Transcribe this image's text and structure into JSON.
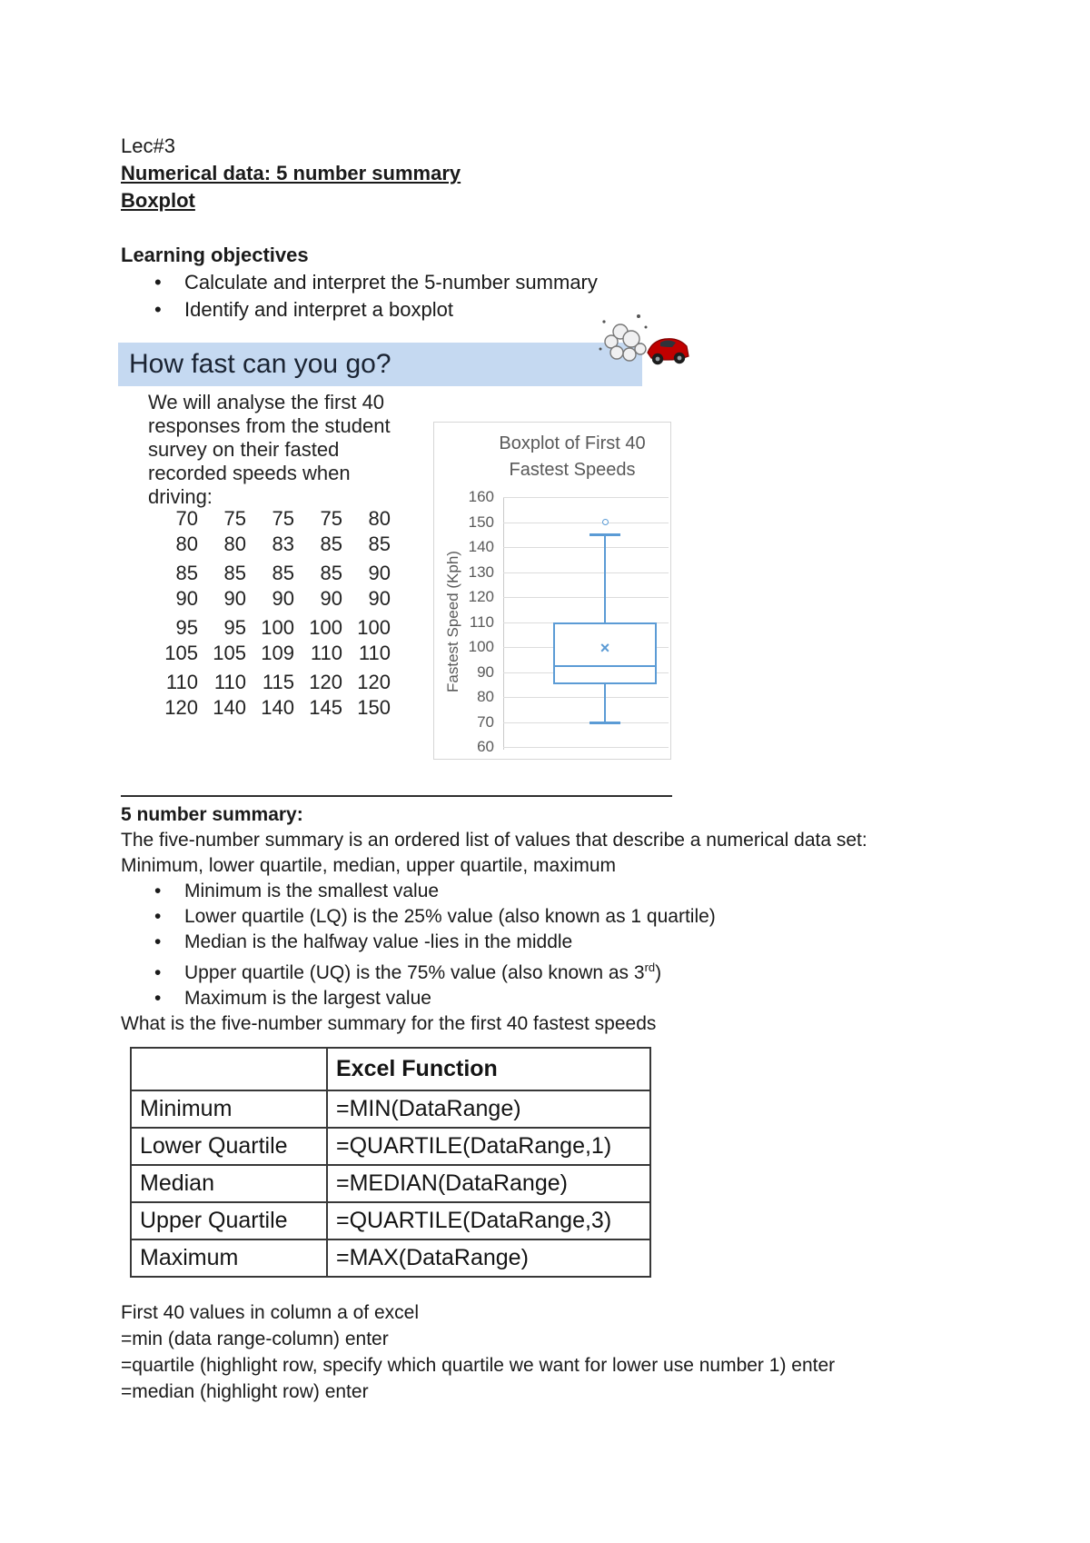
{
  "head": {
    "lec": "Lec#3",
    "title1": "Numerical data: 5 number summary",
    "title2": "Boxplot"
  },
  "objectives": {
    "heading": "Learning objectives",
    "bullet_char": "•",
    "items": [
      "Calculate and interpret the 5-number summary",
      "Identify and interpret a boxplot"
    ]
  },
  "banner": {
    "text": "How fast can you go?",
    "bg": "#c5d9f1"
  },
  "clipart": {
    "name": "speeding car with dust cloud"
  },
  "intro": {
    "text": "We will analyse the first 40 responses from the student survey on their fasted recorded speeds when driving:"
  },
  "speeds": [
    [
      70,
      75,
      75,
      75,
      80
    ],
    [
      80,
      80,
      83,
      85,
      85
    ],
    [
      85,
      85,
      85,
      85,
      90
    ],
    [
      90,
      90,
      90,
      90,
      90
    ],
    [
      95,
      95,
      100,
      100,
      100
    ],
    [
      105,
      105,
      109,
      110,
      110
    ],
    [
      110,
      110,
      115,
      120,
      120
    ],
    [
      120,
      140,
      140,
      145,
      150
    ]
  ],
  "chart_data": {
    "type": "boxplot",
    "title": [
      "Boxplot of First 40",
      "Fastest Speeds"
    ],
    "ylabel": "Fastest Speed (Kph)",
    "ylim": [
      60,
      160
    ],
    "ticks": [
      160,
      150,
      140,
      130,
      120,
      110,
      100,
      90,
      80,
      70,
      60
    ],
    "grid": true,
    "series": {
      "name": "First 40 Fastest Speeds",
      "whisker_low": 70,
      "q1": 85,
      "median": 92.5,
      "mean": 99,
      "q3": 110,
      "whisker_high": 145,
      "outliers": [
        150
      ]
    },
    "color": "#5b9bd5"
  },
  "summary": {
    "heading": "5 number summary:",
    "line1": "The five-number summary is an ordered list of values that describe a numerical data set:",
    "line2": "Minimum, lower quartile, median, upper quartile, maximum",
    "bullet_char": "•",
    "bullets": [
      {
        "text": "Minimum is the smallest value"
      },
      {
        "text": "Lower quartile (LQ) is the 25% value (also known as 1 quartile)"
      },
      {
        "text": "Median is the halfway value -lies in the middle"
      },
      {
        "pre": "Upper quartile (UQ) is the 75% value (also known as 3",
        "sup": "rd",
        "post": ")"
      },
      {
        "text": "Maximum is the largest value"
      }
    ],
    "question": "What is the five-number summary for the first 40 fastest speeds"
  },
  "table": {
    "header": [
      "",
      "Excel Function"
    ],
    "rows": [
      [
        "Minimum",
        "=MIN(DataRange)"
      ],
      [
        "Lower Quartile",
        "=QUARTILE(DataRange,1)"
      ],
      [
        "Median",
        "=MEDIAN(DataRange)"
      ],
      [
        "Upper Quartile",
        "=QUARTILE(DataRange,3)"
      ],
      [
        "Maximum",
        "=MAX(DataRange)"
      ]
    ]
  },
  "notes": [
    "First 40 values in column a of excel",
    "=min (data range-column) enter",
    "=quartile (highlight row, specify which quartile we want for lower use number 1) enter",
    "=median (highlight row) enter"
  ]
}
